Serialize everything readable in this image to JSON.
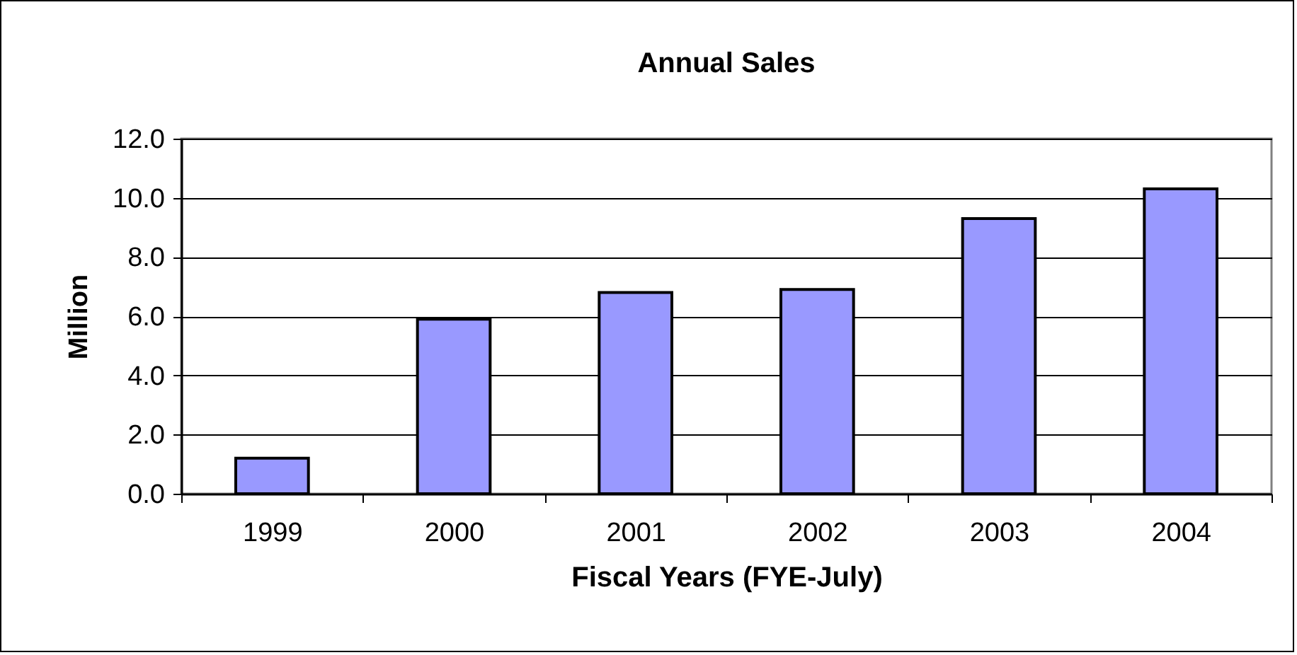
{
  "chart_data": {
    "type": "bar",
    "title": "Annual Sales",
    "xlabel": "Fiscal Years (FYE-July)",
    "ylabel": "Million",
    "categories": [
      "1999",
      "2000",
      "2001",
      "2002",
      "2003",
      "2004"
    ],
    "values": [
      1.2,
      5.9,
      6.8,
      6.9,
      9.3,
      10.3
    ],
    "color": "#9999ff",
    "ylim": [
      0,
      12
    ],
    "yticks": [
      {
        "value": 0,
        "label": "0.0"
      },
      {
        "value": 2,
        "label": "2.0"
      },
      {
        "value": 4,
        "label": "4.0"
      },
      {
        "value": 6,
        "label": "6.0"
      },
      {
        "value": 8,
        "label": "8.0"
      },
      {
        "value": 10,
        "label": "10.0"
      },
      {
        "value": 12,
        "label": "12.0"
      }
    ],
    "grid": "y"
  }
}
